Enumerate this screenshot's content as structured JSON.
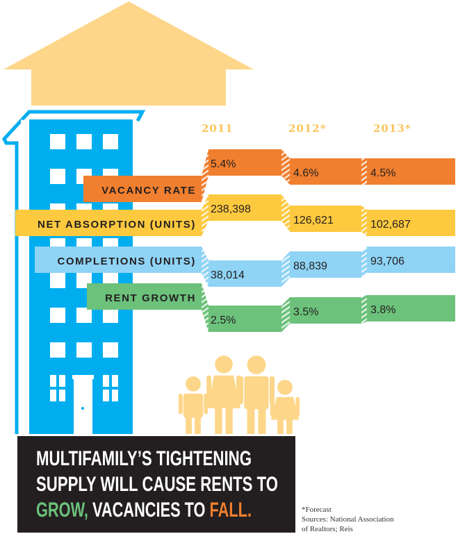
{
  "colors": {
    "building": "#00aeef",
    "roof": "#fdd68a",
    "people": "#fdd68a",
    "year_text": "#f8c55a",
    "headline_bg": "#231f20",
    "grow": "#6cc17b",
    "fall": "#f07f2f"
  },
  "chart_data": {
    "type": "table",
    "title": "Multifamily's tightening supply will cause rents to grow, vacancies to fall.",
    "columns": [
      "2011",
      "2012*",
      "2013*"
    ],
    "series": [
      {
        "name": "VACANCY RATE",
        "values": [
          "5.4%",
          "4.6%",
          "4.5%"
        ],
        "numeric": [
          5.4,
          4.6,
          4.5
        ],
        "unit": "%",
        "color": "#f07f2f"
      },
      {
        "name": "NET ABSORPTION (UNITS)",
        "values": [
          "238,398",
          "126,621",
          "102,687"
        ],
        "numeric": [
          238398,
          126621,
          102687
        ],
        "unit": "units",
        "color": "#fdc93f"
      },
      {
        "name": "COMPLETIONS (UNITS)",
        "values": [
          "38,014",
          "88,839",
          "93,706"
        ],
        "numeric": [
          38014,
          88839,
          93706
        ],
        "unit": "units",
        "color": "#8fd3f5"
      },
      {
        "name": "RENT GROWTH",
        "values": [
          "2.5%",
          "3.5%",
          "3.8%"
        ],
        "numeric": [
          2.5,
          3.5,
          3.8
        ],
        "unit": "%",
        "color": "#6cc17b"
      }
    ]
  },
  "headline": {
    "line1": "MULTIFAMILY’S TIGHTENING",
    "line2": "SUPPLY WILL CAUSE RENTS TO",
    "line3_a": "GROW,",
    "line3_b": " VACANCIES TO ",
    "line3_c": "FALL."
  },
  "footnote": {
    "line1": "*Forecast",
    "line2": "Sources: National Association",
    "line3": "of Realtors; Reis"
  }
}
